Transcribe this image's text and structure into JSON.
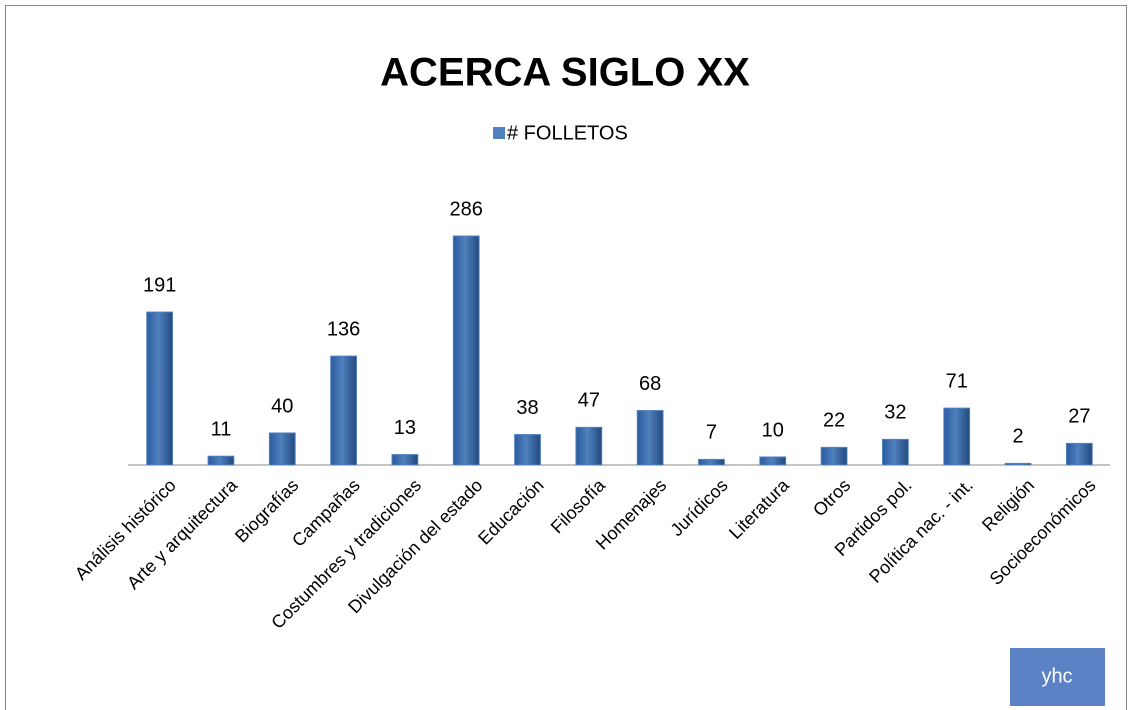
{
  "chart_data": {
    "type": "bar",
    "title": "ACERCA SIGLO XX",
    "categories": [
      "Análisis histórico",
      "Arte y arquitectura",
      "Biografías",
      "Campañas",
      "Costumbres y tradiciones",
      "Divulgación del estado",
      "Educación",
      "Filosofía",
      "Homenajes",
      "Jurídicos",
      "Literatura",
      "Otros",
      "Partidos pol.",
      "Política nac. - int.",
      "Religión",
      "Socioeconómicos"
    ],
    "series": [
      {
        "name": "# FOLLETOS",
        "color": "#4f81bd",
        "values": [
          191,
          11,
          40,
          136,
          13,
          286,
          38,
          47,
          68,
          7,
          10,
          22,
          32,
          71,
          2,
          27
        ]
      }
    ],
    "legend": "top",
    "badge": "yhc"
  }
}
